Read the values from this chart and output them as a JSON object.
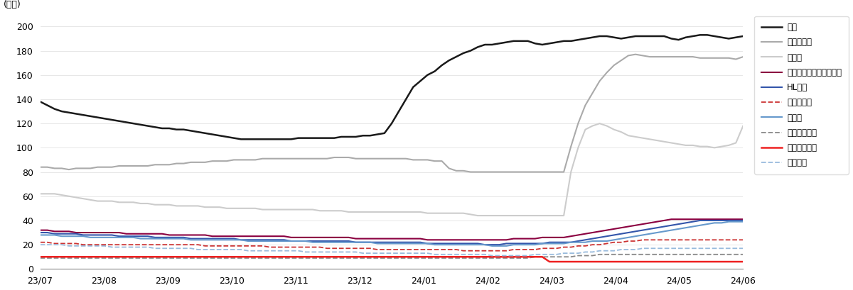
{
  "title": "",
  "ylabel": "(만주)",
  "ylim": [
    0,
    210
  ],
  "yticks": [
    0,
    20,
    40,
    60,
    80,
    100,
    120,
    140,
    160,
    180,
    200
  ],
  "xtick_labels": [
    "23/07",
    "23/08",
    "23/09",
    "23/10",
    "23/11",
    "23/12",
    "24/01",
    "24/02",
    "24/03",
    "24/04",
    "24/05",
    "24/06"
  ],
  "background_color": "#ffffff",
  "series": [
    {
      "name": "기아",
      "color": "#1a1a1a",
      "linestyle": "solid",
      "linewidth": 1.8,
      "data": [
        138,
        135,
        132,
        130,
        129,
        128,
        127,
        126,
        125,
        124,
        123,
        122,
        121,
        120,
        119,
        118,
        117,
        116,
        116,
        115,
        115,
        114,
        113,
        112,
        111,
        110,
        109,
        108,
        107,
        107,
        107,
        107,
        107,
        107,
        107,
        107,
        108,
        108,
        108,
        108,
        108,
        108,
        109,
        109,
        109,
        110,
        110,
        111,
        112,
        120,
        130,
        140,
        150,
        155,
        160,
        163,
        168,
        172,
        175,
        178,
        180,
        183,
        185,
        185,
        186,
        187,
        188,
        188,
        188,
        186,
        185,
        186,
        187,
        188,
        188,
        189,
        190,
        191,
        192,
        192,
        191,
        190,
        191,
        192,
        192,
        192,
        192,
        192,
        190,
        189,
        191,
        192,
        193,
        193,
        192,
        191,
        190,
        191,
        192
      ]
    },
    {
      "name": "한온시스템",
      "color": "#aaaaaa",
      "linestyle": "solid",
      "linewidth": 1.5,
      "data": [
        84,
        84,
        83,
        83,
        82,
        83,
        83,
        83,
        84,
        84,
        84,
        85,
        85,
        85,
        85,
        85,
        86,
        86,
        86,
        87,
        87,
        88,
        88,
        88,
        89,
        89,
        89,
        90,
        90,
        90,
        90,
        91,
        91,
        91,
        91,
        91,
        91,
        91,
        91,
        91,
        91,
        92,
        92,
        92,
        91,
        91,
        91,
        91,
        91,
        91,
        91,
        91,
        90,
        90,
        90,
        89,
        89,
        83,
        81,
        81,
        80,
        80,
        80,
        80,
        80,
        80,
        80,
        80,
        80,
        80,
        80,
        80,
        80,
        80,
        101,
        120,
        135,
        145,
        155,
        162,
        168,
        172,
        176,
        177,
        176,
        175,
        175,
        175,
        175,
        175,
        175,
        175,
        174,
        174,
        174,
        174,
        174,
        173,
        175
      ]
    },
    {
      "name": "현대차",
      "color": "#cccccc",
      "linestyle": "solid",
      "linewidth": 1.5,
      "data": [
        62,
        62,
        62,
        61,
        60,
        59,
        58,
        57,
        56,
        56,
        56,
        55,
        55,
        55,
        54,
        54,
        53,
        53,
        53,
        52,
        52,
        52,
        52,
        51,
        51,
        51,
        50,
        50,
        50,
        50,
        50,
        49,
        49,
        49,
        49,
        49,
        49,
        49,
        49,
        48,
        48,
        48,
        48,
        47,
        47,
        47,
        47,
        47,
        47,
        47,
        47,
        47,
        47,
        47,
        46,
        46,
        46,
        46,
        46,
        46,
        45,
        44,
        44,
        44,
        44,
        44,
        44,
        44,
        44,
        44,
        44,
        44,
        44,
        44,
        80,
        100,
        115,
        118,
        120,
        118,
        115,
        113,
        110,
        109,
        108,
        107,
        106,
        105,
        104,
        103,
        102,
        102,
        101,
        101,
        100,
        101,
        102,
        104,
        118
      ]
    },
    {
      "name": "한국타이어앤테크놀로지",
      "color": "#8B0040",
      "linestyle": "solid",
      "linewidth": 1.5,
      "data": [
        32,
        32,
        31,
        31,
        31,
        30,
        30,
        30,
        30,
        30,
        30,
        30,
        29,
        29,
        29,
        29,
        29,
        29,
        28,
        28,
        28,
        28,
        28,
        28,
        27,
        27,
        27,
        27,
        27,
        27,
        27,
        27,
        27,
        27,
        27,
        26,
        26,
        26,
        26,
        26,
        26,
        26,
        26,
        26,
        25,
        25,
        25,
        25,
        25,
        25,
        25,
        25,
        25,
        25,
        24,
        24,
        24,
        24,
        24,
        24,
        24,
        24,
        24,
        24,
        24,
        24,
        25,
        25,
        25,
        25,
        26,
        26,
        26,
        26,
        27,
        28,
        29,
        30,
        31,
        32,
        33,
        34,
        35,
        36,
        37,
        38,
        39,
        40,
        41,
        41,
        41,
        41,
        41,
        41,
        41,
        41,
        41,
        41,
        41
      ]
    },
    {
      "name": "HL만도",
      "color": "#3355aa",
      "linestyle": "solid",
      "linewidth": 1.5,
      "data": [
        30,
        30,
        29,
        29,
        29,
        29,
        28,
        28,
        28,
        28,
        28,
        27,
        27,
        27,
        27,
        27,
        26,
        26,
        26,
        26,
        26,
        25,
        25,
        25,
        25,
        25,
        25,
        25,
        24,
        24,
        24,
        24,
        24,
        24,
        24,
        23,
        23,
        23,
        23,
        23,
        23,
        23,
        23,
        23,
        22,
        22,
        22,
        22,
        22,
        22,
        22,
        22,
        22,
        22,
        21,
        21,
        21,
        21,
        21,
        21,
        21,
        21,
        20,
        20,
        20,
        21,
        21,
        21,
        21,
        21,
        21,
        22,
        22,
        22,
        22,
        23,
        24,
        25,
        26,
        27,
        28,
        29,
        30,
        31,
        32,
        33,
        34,
        35,
        36,
        37,
        38,
        39,
        40,
        40,
        40,
        40,
        40,
        40,
        40
      ]
    },
    {
      "name": "현대모비스",
      "color": "#cc3333",
      "linestyle": "dashed",
      "linewidth": 1.3,
      "data": [
        22,
        22,
        21,
        21,
        21,
        21,
        20,
        20,
        20,
        20,
        20,
        20,
        20,
        20,
        20,
        20,
        20,
        20,
        20,
        20,
        20,
        20,
        20,
        19,
        19,
        19,
        19,
        19,
        19,
        19,
        19,
        19,
        18,
        18,
        18,
        18,
        18,
        18,
        18,
        18,
        17,
        17,
        17,
        17,
        17,
        17,
        17,
        16,
        16,
        16,
        16,
        16,
        16,
        16,
        16,
        16,
        16,
        16,
        16,
        15,
        15,
        15,
        15,
        15,
        15,
        15,
        16,
        16,
        16,
        16,
        17,
        17,
        17,
        18,
        18,
        19,
        19,
        20,
        20,
        21,
        22,
        22,
        23,
        23,
        24,
        24,
        24,
        24,
        24,
        24,
        24,
        24,
        24,
        24,
        24,
        24,
        24,
        24,
        24
      ]
    },
    {
      "name": "에스엘",
      "color": "#6699cc",
      "linestyle": "solid",
      "linewidth": 1.5,
      "data": [
        28,
        28,
        28,
        27,
        27,
        27,
        27,
        26,
        26,
        26,
        26,
        26,
        26,
        26,
        25,
        25,
        25,
        25,
        25,
        25,
        25,
        24,
        24,
        24,
        24,
        24,
        24,
        24,
        24,
        23,
        23,
        23,
        23,
        23,
        23,
        23,
        23,
        23,
        22,
        22,
        22,
        22,
        22,
        22,
        22,
        22,
        22,
        21,
        21,
        21,
        21,
        21,
        21,
        21,
        21,
        20,
        20,
        20,
        20,
        20,
        20,
        20,
        20,
        19,
        19,
        19,
        20,
        20,
        20,
        20,
        21,
        21,
        21,
        21,
        22,
        22,
        22,
        23,
        23,
        23,
        24,
        25,
        26,
        27,
        28,
        29,
        30,
        31,
        32,
        33,
        34,
        35,
        36,
        37,
        38,
        38,
        39,
        39,
        39
      ]
    },
    {
      "name": "현대오토에버",
      "color": "#888888",
      "linestyle": "dashed",
      "linewidth": 1.3,
      "data": [
        9,
        9,
        9,
        9,
        9,
        9,
        9,
        9,
        9,
        9,
        9,
        9,
        9,
        9,
        9,
        9,
        9,
        9,
        9,
        9,
        9,
        9,
        9,
        9,
        9,
        9,
        9,
        9,
        9,
        9,
        9,
        9,
        9,
        9,
        9,
        9,
        9,
        9,
        9,
        9,
        9,
        9,
        9,
        9,
        9,
        9,
        9,
        9,
        9,
        9,
        9,
        9,
        9,
        9,
        9,
        9,
        9,
        9,
        9,
        9,
        9,
        9,
        9,
        9,
        9,
        9,
        9,
        9,
        9,
        10,
        10,
        10,
        10,
        10,
        10,
        11,
        11,
        11,
        12,
        12,
        12,
        12,
        12,
        12,
        12,
        12,
        12,
        12,
        12,
        12,
        12,
        12,
        12,
        12,
        12,
        12,
        12,
        12,
        12
      ]
    },
    {
      "name": "현대글로비스",
      "color": "#ee2222",
      "linestyle": "solid",
      "linewidth": 1.8,
      "data": [
        10,
        10,
        10,
        10,
        10,
        10,
        10,
        10,
        10,
        10,
        10,
        10,
        10,
        10,
        10,
        10,
        10,
        10,
        10,
        10,
        10,
        10,
        10,
        10,
        10,
        10,
        10,
        10,
        10,
        10,
        10,
        10,
        10,
        10,
        10,
        10,
        10,
        10,
        10,
        10,
        10,
        10,
        10,
        10,
        10,
        10,
        10,
        10,
        10,
        10,
        10,
        10,
        10,
        10,
        10,
        10,
        10,
        10,
        10,
        10,
        10,
        10,
        10,
        10,
        10,
        10,
        10,
        10,
        10,
        10,
        10,
        6,
        6,
        6,
        6,
        6,
        6,
        6,
        6,
        6,
        6,
        6,
        6,
        6,
        6,
        6,
        6,
        6,
        6,
        6,
        6,
        6,
        6,
        6,
        6,
        6,
        6,
        6,
        6
      ]
    },
    {
      "name": "현대위아",
      "color": "#99bbdd",
      "linestyle": "dashed",
      "linewidth": 1.3,
      "data": [
        20,
        20,
        20,
        20,
        19,
        19,
        19,
        19,
        19,
        19,
        18,
        18,
        18,
        18,
        18,
        18,
        17,
        17,
        17,
        17,
        17,
        17,
        16,
        16,
        16,
        16,
        16,
        16,
        16,
        15,
        15,
        15,
        15,
        15,
        15,
        15,
        15,
        14,
        14,
        14,
        14,
        14,
        14,
        14,
        14,
        13,
        13,
        13,
        13,
        13,
        13,
        13,
        13,
        13,
        13,
        12,
        12,
        12,
        12,
        12,
        12,
        12,
        12,
        11,
        11,
        11,
        11,
        11,
        11,
        12,
        12,
        12,
        12,
        13,
        13,
        13,
        14,
        14,
        15,
        15,
        15,
        16,
        16,
        16,
        17,
        17,
        17,
        17,
        17,
        17,
        17,
        17,
        17,
        17,
        17,
        17,
        17,
        17,
        17
      ]
    }
  ]
}
